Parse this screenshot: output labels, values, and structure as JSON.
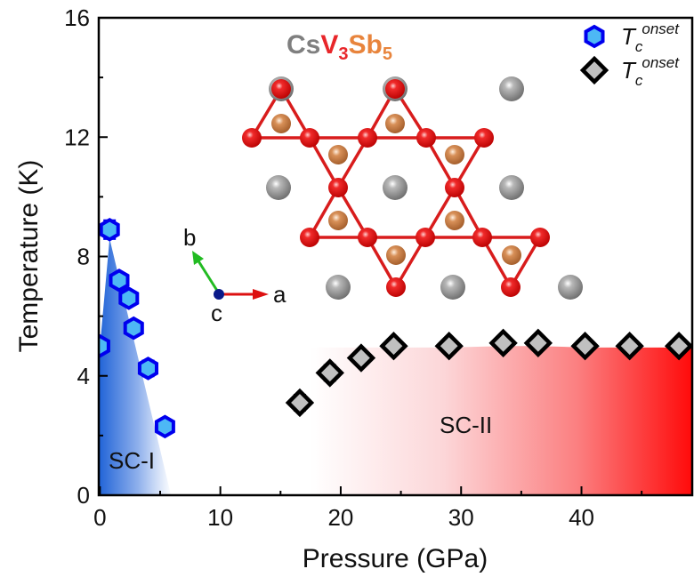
{
  "chart_data": {
    "type": "scatter",
    "title": "",
    "xlabel": "Pressure (GPa)",
    "ylabel": "Temperature (K)",
    "xlim": [
      -0.1,
      49.2
    ],
    "ylim": [
      0,
      16
    ],
    "x_ticks": [
      0,
      10,
      20,
      30,
      40
    ],
    "x_minor_ticks": [
      5,
      15,
      25,
      35,
      45
    ],
    "y_ticks": [
      0,
      4,
      8,
      12,
      16
    ],
    "y_minor_ticks": [
      2,
      6,
      10,
      14
    ],
    "grid": false,
    "legend_position": "top-right",
    "series": [
      {
        "name": "Tc onset (SC-I)",
        "legend_main": "T",
        "legend_sub": "c",
        "legend_sup": "onset",
        "marker": "hexagon",
        "color": "#0000ee",
        "fill": "#4db8f5",
        "x": [
          0.0,
          0.8,
          1.6,
          2.4,
          2.8,
          4.0,
          5.4
        ],
        "y": [
          5.0,
          8.9,
          7.2,
          6.6,
          5.6,
          4.25,
          2.3
        ],
        "yerr": [
          0.0,
          0.3,
          0.0,
          0.0,
          0.0,
          0.25,
          0.0
        ]
      },
      {
        "name": "Tc onset (SC-II)",
        "legend_main": "T",
        "legend_sub": "c",
        "legend_sup": "onset",
        "marker": "diamond",
        "color": "#000000",
        "fill": "#c0c0c0",
        "x": [
          16.6,
          19.1,
          21.7,
          24.4,
          29.0,
          33.5,
          36.4,
          40.3,
          44.0,
          48.1
        ],
        "y": [
          3.1,
          4.1,
          4.6,
          5.0,
          5.0,
          5.1,
          5.1,
          5.0,
          5.0,
          5.0
        ],
        "yerr": [
          0.25,
          0.25,
          0.0,
          0.0,
          0.0,
          0.0,
          0.0,
          0.0,
          0.0,
          0.0
        ]
      }
    ],
    "regions": [
      {
        "name": "SC-I",
        "label": "SC-I",
        "gradient": [
          "#1a5fd6",
          "#ffffff"
        ],
        "boundary_x": [
          0.0,
          0.8,
          5.9,
          6.0
        ],
        "boundary_y": [
          5.0,
          8.6,
          0.0,
          0.0
        ]
      },
      {
        "name": "SC-II",
        "label": "SC-II",
        "gradient": [
          "#ffffff",
          "#ff0000"
        ],
        "start_x": 17.5,
        "boundary_x": [
          24.4,
          29.0,
          33.5,
          36.4,
          40.3,
          44.0,
          49.2
        ],
        "boundary_y": [
          4.95,
          4.95,
          5.0,
          5.0,
          4.95,
          4.95,
          4.95
        ]
      }
    ],
    "annotations": {
      "formula": [
        {
          "text": "Cs",
          "color": "#7f7f7f",
          "sub": false
        },
        {
          "text": "V",
          "color": "#e8262a",
          "sub": false
        },
        {
          "text": "3",
          "color": "#e8262a",
          "sub": true
        },
        {
          "text": "Sb",
          "color": "#e8843c",
          "sub": false
        },
        {
          "text": "5",
          "color": "#e8843c",
          "sub": true
        }
      ],
      "crystal_axes": {
        "a": "a",
        "b": "b",
        "c": "c"
      },
      "atom_colors": {
        "Cs": "#808080",
        "V": "#e0141a",
        "Sb": "#c8783c"
      }
    }
  }
}
